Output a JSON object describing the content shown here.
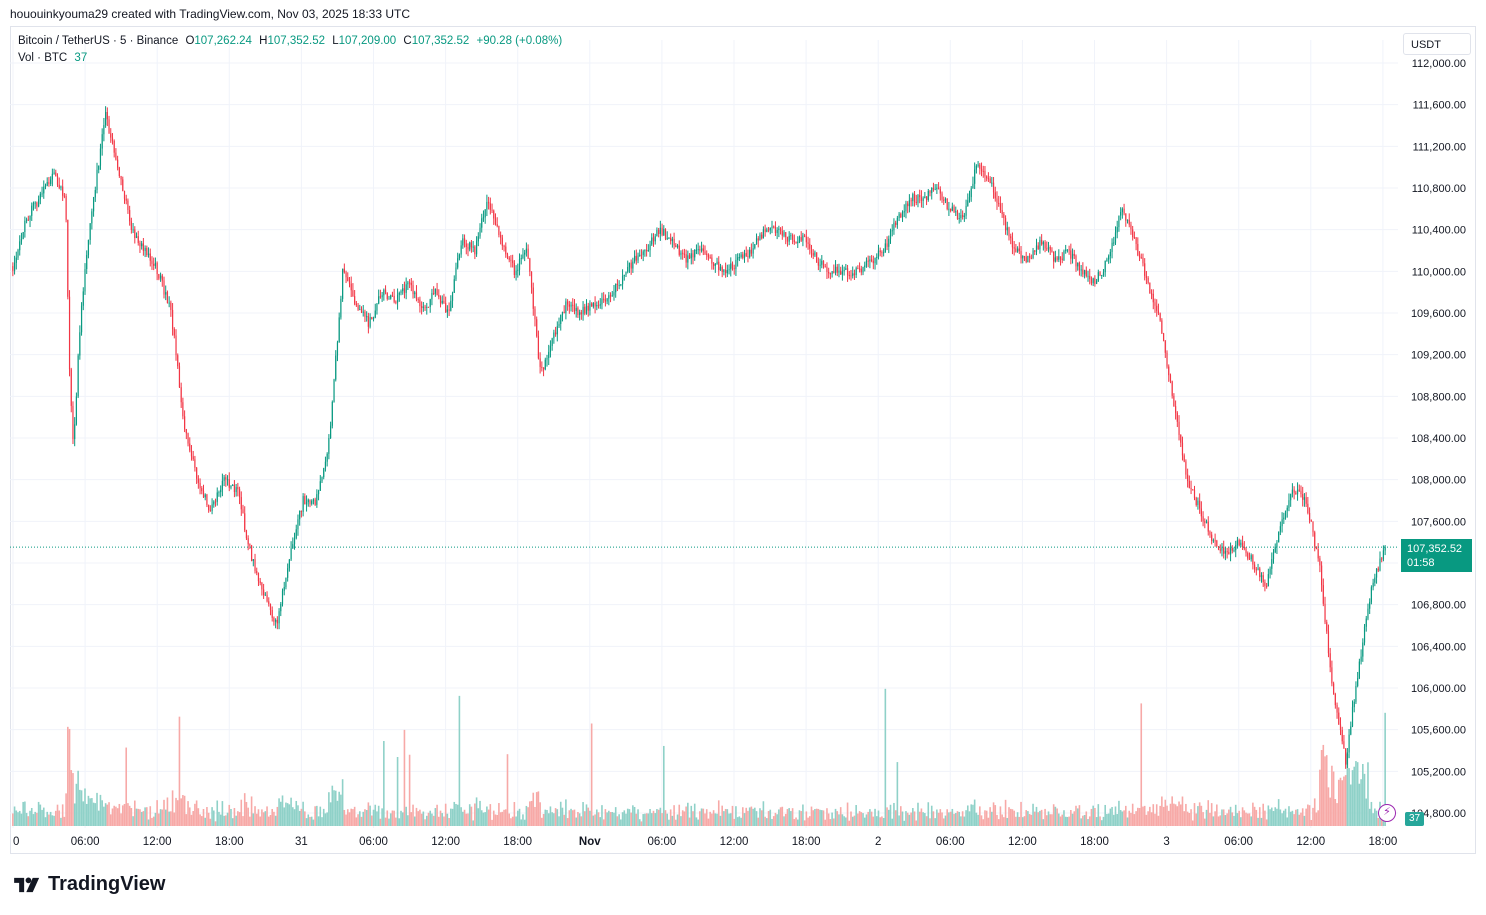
{
  "header": {
    "created_by": "hououinkyouma29 created with TradingView.com, Nov 03, 2025 18:33 UTC"
  },
  "legend": {
    "symbol": "Bitcoin / TetherUS · 5 · Binance",
    "o_label": "O",
    "o_value": "107,262.24",
    "h_label": "H",
    "h_value": "107,352.52",
    "l_label": "L",
    "l_value": "107,209.00",
    "c_label": "C",
    "c_value": "107,352.52",
    "change": "+90.28 (+0.08%)",
    "vol_label": "Vol · BTC",
    "vol_value": "37"
  },
  "currency": "USDT",
  "price_tag": {
    "price": "107,352.52",
    "countdown": "01:58"
  },
  "volume_tag": "37",
  "brand": "TradingView",
  "colors": {
    "up": "#089981",
    "down": "#f23645",
    "up_vol": "#8fd1c8",
    "down_vol": "#f7a9a7",
    "grid": "#f0f3fa"
  },
  "chart_data": {
    "type": "candlestick",
    "title": "Bitcoin / TetherUS · 5 · Binance",
    "ylim": [
      104800,
      112000
    ],
    "y_ticks": [
      "112,000.00",
      "111,600.00",
      "111,200.00",
      "110,800.00",
      "110,400.00",
      "110,000.00",
      "109,600.00",
      "109,200.00",
      "108,800.00",
      "108,400.00",
      "108,000.00",
      "107,600.00",
      "107,200.00",
      "106,800.00",
      "106,400.00",
      "106,000.00",
      "105,600.00",
      "105,200.00",
      "104,800.00"
    ],
    "x_ticks": [
      "0",
      "06:00",
      "12:00",
      "18:00",
      "31",
      "06:00",
      "12:00",
      "18:00",
      "Nov",
      "06:00",
      "12:00",
      "18:00",
      "2",
      "06:00",
      "12:00",
      "18:00",
      "3",
      "06:00",
      "12:00",
      "18:00"
    ],
    "last_price": 107352.52,
    "price_path": [
      [
        0,
        110050
      ],
      [
        1,
        110500
      ],
      [
        2,
        110700
      ],
      [
        3,
        110950
      ],
      [
        4,
        110700
      ],
      [
        4.3,
        109000
      ],
      [
        4.6,
        108300
      ],
      [
        5,
        109300
      ],
      [
        5.5,
        110100
      ],
      [
        6,
        110600
      ],
      [
        7,
        111500
      ],
      [
        8,
        111000
      ],
      [
        9,
        110400
      ],
      [
        10,
        110200
      ],
      [
        11,
        110000
      ],
      [
        12,
        109600
      ],
      [
        13,
        108500
      ],
      [
        14,
        108000
      ],
      [
        15,
        107700
      ],
      [
        16,
        108000
      ],
      [
        17,
        107900
      ],
      [
        18,
        107300
      ],
      [
        19,
        106900
      ],
      [
        20,
        106600
      ],
      [
        21,
        107300
      ],
      [
        22,
        107800
      ],
      [
        23,
        107800
      ],
      [
        24,
        108400
      ],
      [
        25,
        110000
      ],
      [
        26,
        109700
      ],
      [
        27,
        109500
      ],
      [
        28,
        109800
      ],
      [
        29,
        109700
      ],
      [
        30,
        109900
      ],
      [
        31,
        109600
      ],
      [
        32,
        109800
      ],
      [
        33,
        109600
      ],
      [
        34,
        110300
      ],
      [
        35,
        110200
      ],
      [
        36,
        110700
      ],
      [
        37,
        110300
      ],
      [
        38,
        110000
      ],
      [
        39,
        110200
      ],
      [
        40,
        109000
      ],
      [
        41,
        109400
      ],
      [
        42,
        109700
      ],
      [
        43,
        109600
      ],
      [
        44,
        109700
      ],
      [
        45,
        109700
      ],
      [
        46,
        109900
      ],
      [
        47,
        110100
      ],
      [
        48,
        110200
      ],
      [
        49,
        110400
      ],
      [
        50,
        110300
      ],
      [
        51,
        110100
      ],
      [
        52,
        110200
      ],
      [
        53,
        110100
      ],
      [
        54,
        110000
      ],
      [
        55,
        110100
      ],
      [
        56,
        110200
      ],
      [
        57,
        110400
      ],
      [
        58,
        110400
      ],
      [
        59,
        110300
      ],
      [
        60,
        110300
      ],
      [
        61,
        110100
      ],
      [
        62,
        110000
      ],
      [
        63,
        110000
      ],
      [
        64,
        110000
      ],
      [
        65,
        110100
      ],
      [
        66,
        110200
      ],
      [
        67,
        110500
      ],
      [
        68,
        110700
      ],
      [
        69,
        110700
      ],
      [
        70,
        110800
      ],
      [
        71,
        110600
      ],
      [
        72,
        110500
      ],
      [
        73,
        111000
      ],
      [
        74,
        110900
      ],
      [
        75,
        110500
      ],
      [
        76,
        110200
      ],
      [
        77,
        110100
      ],
      [
        78,
        110300
      ],
      [
        79,
        110100
      ],
      [
        80,
        110200
      ],
      [
        81,
        110000
      ],
      [
        82,
        109900
      ],
      [
        83,
        110100
      ],
      [
        84,
        110600
      ],
      [
        85,
        110300
      ],
      [
        86,
        109900
      ],
      [
        87,
        109500
      ],
      [
        88,
        108700
      ],
      [
        89,
        108000
      ],
      [
        90,
        107700
      ],
      [
        91,
        107400
      ],
      [
        92,
        107300
      ],
      [
        93,
        107400
      ],
      [
        94,
        107200
      ],
      [
        95,
        107000
      ],
      [
        96,
        107500
      ],
      [
        97,
        107900
      ],
      [
        98,
        107800
      ],
      [
        99,
        107200
      ],
      [
        100,
        106000
      ],
      [
        101,
        105300
      ],
      [
        102,
        106200
      ],
      [
        103,
        107000
      ],
      [
        104,
        107352
      ]
    ],
    "volume_note": "volume histogram at bottom, last bar 37 BTC"
  }
}
